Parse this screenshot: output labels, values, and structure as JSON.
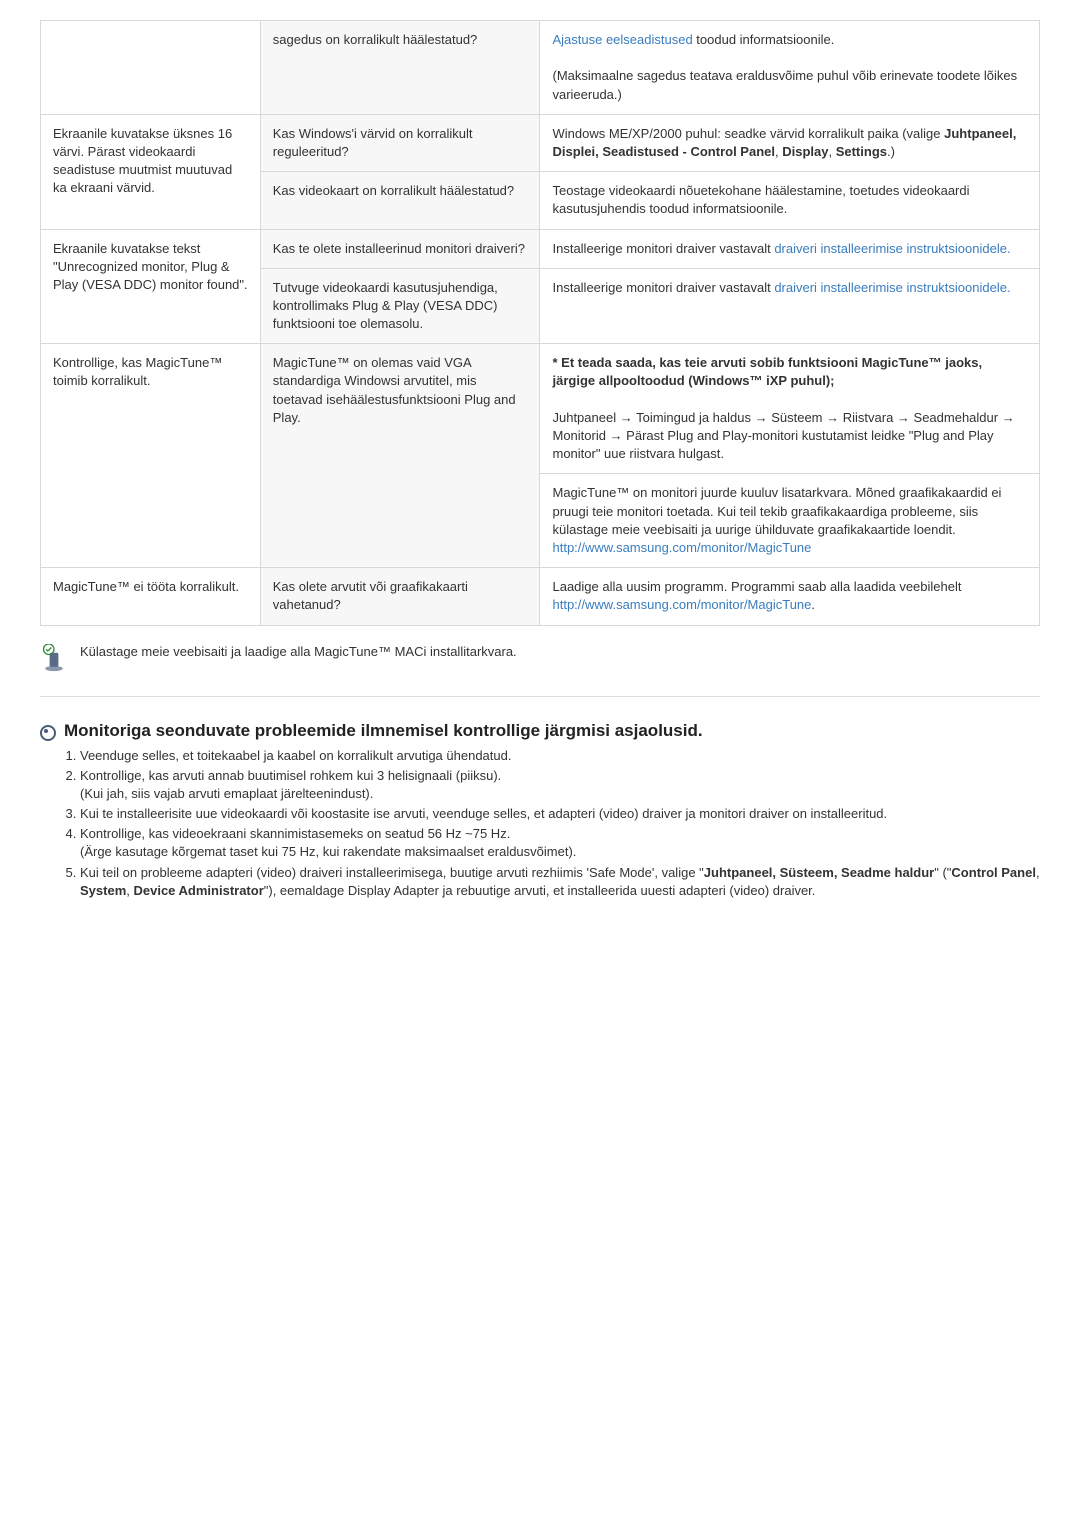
{
  "table": {
    "rows": [
      {
        "col1": "",
        "col2": "sagedus on korralikult häälestatud?",
        "col3": [
          {
            "t": "link",
            "text": "Ajastuse eelseadistused"
          },
          {
            "t": "text",
            "text": " toodud informatsioonile."
          },
          {
            "t": "br"
          },
          {
            "t": "br"
          },
          {
            "t": "text",
            "text": "(Maksimaalne sagedus teatava eraldusvõime puhul võib erinevate toodete lõikes varieeruda.)"
          }
        ],
        "col1_rowspan": 1
      },
      {
        "col1": "Ekraanile kuvatakse üksnes 16 värvi. Pärast videokaardi seadistuse muutmist muutuvad ka ekraani värvid.",
        "col2": "Kas Windows'i värvid on korralikult reguleeritud?",
        "col3": [
          {
            "t": "text",
            "text": "Windows ME/XP/2000 puhul: seadke värvid korralikult paika (valige "
          },
          {
            "t": "bold",
            "text": "Juhtpaneel, Displei, Seadistused - Control Panel"
          },
          {
            "t": "text",
            "text": ", "
          },
          {
            "t": "bold",
            "text": "Display"
          },
          {
            "t": "text",
            "text": ", "
          },
          {
            "t": "bold",
            "text": "Settings"
          },
          {
            "t": "text",
            "text": ".)"
          }
        ],
        "col1_rowspan": 2
      },
      {
        "col1": "",
        "col2": "Kas videokaart on korralikult häälestatud?",
        "col3": [
          {
            "t": "text",
            "text": "Teostage videokaardi nõuetekohane häälestamine, toetudes videokaardi kasutusjuhendis toodud informatsioonile."
          }
        ],
        "col1_rowspan": 0
      },
      {
        "col1": "Ekraanile kuvatakse tekst \"Unrecognized monitor, Plug & Play (VESA DDC) monitor found\".",
        "col2": "Kas te olete installeerinud monitori draiveri?",
        "col3": [
          {
            "t": "text",
            "text": "Installeerige monitori draiver vastavalt "
          },
          {
            "t": "link",
            "text": "draiveri installeerimise instruktsioonidele."
          }
        ],
        "col1_rowspan": 2
      },
      {
        "col1": "",
        "col2": "Tutvuge videokaardi kasutusjuhendiga, kontrollimaks Plug & Play (VESA DDC) funktsiooni toe olemasolu.",
        "col3": [
          {
            "t": "text",
            "text": "Installeerige monitori draiver vastavalt "
          },
          {
            "t": "link",
            "text": "draiveri installeerimise instruktsioonidele."
          }
        ],
        "col1_rowspan": 0
      },
      {
        "col1": "Kontrollige, kas MagicTune™ toimib korralikult.",
        "col2": "MagicTune™ on olemas vaid VGA standardiga Windowsi arvutitel, mis toetavad isehäälestusfunktsiooni Plug and Play.",
        "col3": [
          {
            "t": "bold",
            "text": "* Et teada saada, kas teie arvuti sobib funktsiooni MagicTune™ jaoks, järgige allpooltoodud (Windows™ iXP puhul);"
          },
          {
            "t": "br"
          },
          {
            "t": "br"
          },
          {
            "t": "text",
            "text": "Juhtpaneel → Toimingud ja haldus → Süsteem → Riistvara → Seadmehaldur → Monitorid → Pärast Plug and Play-monitori kustutamist leidke \"Plug and Play monitor\" uue riistvara hulgast."
          }
        ],
        "col1_rowspan": 2,
        "col2_rowspan": 2
      },
      {
        "col1": "",
        "col2": "",
        "col3": [
          {
            "t": "text",
            "text": "MagicTune™ on monitori juurde kuuluv lisatarkvara. Mõned graafikakaardid ei pruugi teie monitori toetada. Kui teil tekib graafikakaardiga probleeme, siis külastage meie veebisaiti ja uurige ühilduvate graafikakaartide loendit."
          },
          {
            "t": "br"
          },
          {
            "t": "link",
            "text": "http://www.samsung.com/monitor/MagicTune"
          }
        ],
        "col1_rowspan": 0,
        "col2_rowspan": 0
      },
      {
        "col1": "MagicTune™ ei tööta korralikult.",
        "col2": "Kas olete arvutit või graafikakaarti vahetanud?",
        "col3": [
          {
            "t": "text",
            "text": "Laadige alla uusim programm. Programmi saab alla laadida veebilehelt"
          },
          {
            "t": "br"
          },
          {
            "t": "link",
            "text": "http://www.samsung.com/monitor/MagicTune"
          },
          {
            "t": "text",
            "text": "."
          }
        ],
        "col1_rowspan": 1
      }
    ]
  },
  "note_text": "Külastage meie veebisaiti ja laadige alla MagicTune™ MACi installitarkvara.",
  "section": {
    "title": "Monitoriga seonduvate probleemide ilmnemisel kontrollige järgmisi asjaolusid.",
    "items": [
      [
        {
          "t": "text",
          "text": "Veenduge selles, et toitekaabel ja kaabel on korralikult arvutiga ühendatud."
        }
      ],
      [
        {
          "t": "text",
          "text": "Kontrollige, kas arvuti annab buutimisel rohkem kui 3 helisignaali (piiksu)."
        },
        {
          "t": "br"
        },
        {
          "t": "text",
          "text": "(Kui jah, siis vajab arvuti emaplaat järelteenindust)."
        }
      ],
      [
        {
          "t": "text",
          "text": "Kui te installeerisite uue videokaardi või koostasite ise arvuti, veenduge selles, et adapteri (video) draiver ja monitori draiver on installeeritud."
        }
      ],
      [
        {
          "t": "text",
          "text": "Kontrollige, kas videoekraani skannimistasemeks on seatud 56 Hz ~75 Hz."
        },
        {
          "t": "br"
        },
        {
          "t": "text",
          "text": "(Ärge kasutage kõrgemat taset kui 75 Hz, kui rakendate maksimaalset eraldusvõimet)."
        }
      ],
      [
        {
          "t": "text",
          "text": "Kui teil on probleeme adapteri (video) draiveri installeerimisega, buutige arvuti rezhiimis 'Safe Mode', valige \""
        },
        {
          "t": "bold",
          "text": "Juhtpaneel, Süsteem, Seadme haldur"
        },
        {
          "t": "text",
          "text": "\" (\""
        },
        {
          "t": "bold",
          "text": "Control Panel"
        },
        {
          "t": "text",
          "text": ", "
        },
        {
          "t": "bold",
          "text": "System"
        },
        {
          "t": "text",
          "text": ", "
        },
        {
          "t": "bold",
          "text": "Device Administrator"
        },
        {
          "t": "text",
          "text": "\"), eemaldage Display Adapter ja rebuutige arvuti, et installeerida uuesti adapteri (video) draiver."
        }
      ]
    ]
  },
  "icon_colors": {
    "check_stroke": "#2f8a3a",
    "pencil_fill": "#5a6b88",
    "base_fill": "#8b97ad"
  }
}
